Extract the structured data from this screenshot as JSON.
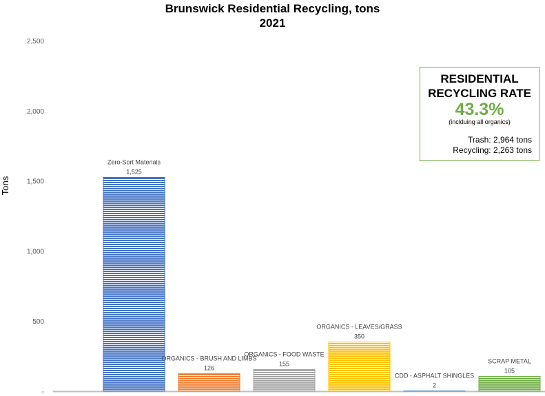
{
  "chart_data": {
    "type": "bar",
    "title": "Brunswick Residential Recycling, tons",
    "subtitle": "2021",
    "ylabel": "Tons",
    "xlabel": "",
    "ylim": [
      0,
      2500
    ],
    "yticks": [
      0,
      500,
      1000,
      1500,
      2000,
      2500
    ],
    "ytick_labels": [
      "-",
      "500",
      "1,000",
      "1,500",
      "2,000",
      "2,500"
    ],
    "grid": false,
    "categories": [
      "Zero-Sort Materials",
      "ORGANICS - BRUSH AND LIMBS",
      "ORGANICS - FOOD WASTE",
      "ORGANICS - LEAVES/GRASS",
      "CDD - ASPHALT SHINGLES",
      "SCRAP METAL"
    ],
    "values": [
      1525,
      126,
      155,
      350,
      2,
      105
    ],
    "value_labels": [
      "1,525",
      "126",
      "155",
      "350",
      "2",
      "105"
    ],
    "colors": [
      "#4472c4",
      "#ed7d31",
      "#a5a5a5",
      "#ffc000",
      "#5b9bd5",
      "#70ad47"
    ]
  },
  "callout": {
    "title_line1": "RESIDENTIAL",
    "title_line2": "RECYCLING RATE",
    "rate": "43.3%",
    "note": "(inclduing all organics)",
    "trash": "Trash:  2,964 tons",
    "recycling": "Recycling:  2,263 tons",
    "accent": "#70ad47"
  }
}
